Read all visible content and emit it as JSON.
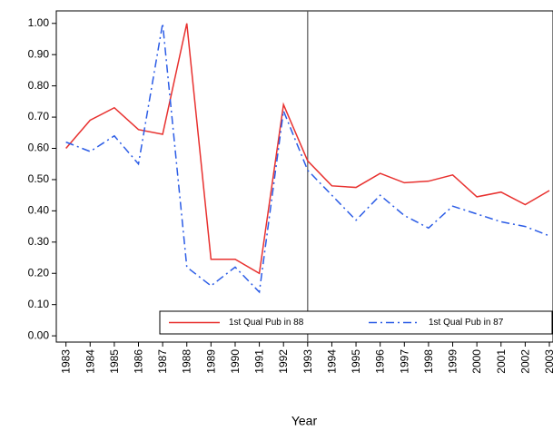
{
  "chart_data": {
    "type": "line",
    "x_label": "Year",
    "x": [
      1983,
      1984,
      1985,
      1986,
      1987,
      1988,
      1989,
      1990,
      1991,
      1992,
      1993,
      1994,
      1995,
      1996,
      1997,
      1998,
      1999,
      2000,
      2001,
      2002,
      2003
    ],
    "series": [
      {
        "name": "1st Qual Pub in 88",
        "color": "#e8312f",
        "dash": "solid",
        "values": [
          0.6,
          0.69,
          0.73,
          0.66,
          0.645,
          1.0,
          0.245,
          0.245,
          0.2,
          0.74,
          0.56,
          0.48,
          0.475,
          0.52,
          0.49,
          0.495,
          0.515,
          0.445,
          0.46,
          0.42,
          0.465
        ]
      },
      {
        "name": "1st Qual Pub in 87",
        "color": "#2b5ce6",
        "dash": "dashdot",
        "values": [
          0.62,
          0.59,
          0.64,
          0.55,
          1.0,
          0.22,
          0.16,
          0.22,
          0.14,
          0.72,
          0.53,
          0.45,
          0.37,
          0.45,
          0.385,
          0.345,
          0.415,
          0.39,
          0.365,
          0.35,
          0.32
        ]
      }
    ],
    "xlim": [
      1982.6,
      2003.15
    ],
    "xticks": [
      1983,
      1984,
      1985,
      1986,
      1987,
      1988,
      1989,
      1990,
      1991,
      1992,
      1993,
      1994,
      1995,
      1996,
      1997,
      1998,
      1999,
      2000,
      2001,
      2002,
      2003
    ],
    "ylim": [
      -0.02,
      1.04
    ],
    "yticks": [
      {
        "value": 0,
        "label": "0.00"
      },
      {
        "value": 0.1,
        "label": "0.10"
      },
      {
        "value": 0.2,
        "label": "0.20"
      },
      {
        "value": 0.3,
        "label": "0.30"
      },
      {
        "value": 0.4,
        "label": "0.40"
      },
      {
        "value": 0.5,
        "label": "0.50"
      },
      {
        "value": 0.6,
        "label": "0.60"
      },
      {
        "value": 0.7,
        "label": "0.70"
      },
      {
        "value": 0.8,
        "label": "0.80"
      },
      {
        "value": 0.9,
        "label": "0.90"
      },
      {
        "value": 1,
        "label": "1.00"
      }
    ],
    "vline": 1993,
    "legend": "bottom-right"
  }
}
